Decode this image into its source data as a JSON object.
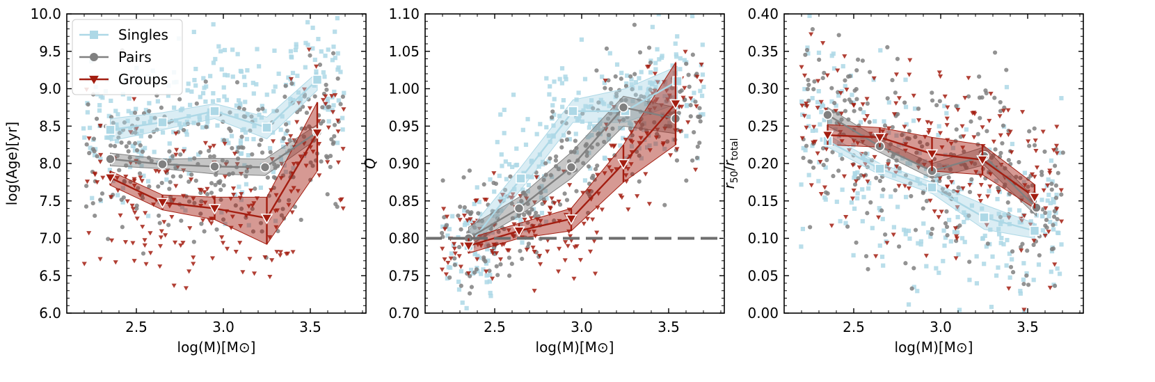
{
  "chart_data": [
    {
      "type": "line",
      "title": "",
      "xlabel": "log(M)[M⊙]",
      "ylabel": "log(Age)[yr]",
      "xlim": [
        2.1,
        3.82
      ],
      "ylim": [
        6.0,
        10.0
      ],
      "xticks": [
        2.5,
        3.0,
        3.5
      ],
      "xtick_labels": [
        "2.5",
        "3.0",
        "3.5"
      ],
      "yticks": [
        6.0,
        6.5,
        7.0,
        7.5,
        8.0,
        8.5,
        9.0,
        9.5,
        10.0
      ],
      "ytick_labels": [
        "6.0",
        "6.5",
        "7.0",
        "7.5",
        "8.0",
        "8.5",
        "9.0",
        "9.5",
        "10.0"
      ],
      "legend": {
        "position": "top-left",
        "entries": [
          "Singles",
          "Pairs",
          "Groups"
        ]
      },
      "series": [
        {
          "name": "Singles",
          "color": "#add8e6",
          "marker": "square",
          "x": [
            2.35,
            2.65,
            2.95,
            3.25,
            3.54
          ],
          "y": [
            8.45,
            8.55,
            8.7,
            8.48,
            9.12
          ],
          "lo": [
            8.3,
            8.45,
            8.6,
            8.33,
            8.98
          ],
          "hi": [
            8.6,
            8.68,
            8.8,
            8.62,
            9.22
          ]
        },
        {
          "name": "Pairs",
          "color": "#808080",
          "marker": "circle",
          "x": [
            2.35,
            2.65,
            2.95,
            3.24,
            3.54
          ],
          "y": [
            8.06,
            7.99,
            7.96,
            7.95,
            8.42
          ],
          "lo": [
            7.97,
            7.93,
            7.86,
            7.84,
            8.33
          ],
          "hi": [
            8.14,
            8.06,
            8.07,
            8.06,
            8.52
          ]
        },
        {
          "name": "Groups",
          "color": "#a31d10",
          "marker": "triangle-down",
          "x": [
            2.35,
            2.65,
            2.95,
            3.25,
            3.54
          ],
          "y": [
            7.81,
            7.48,
            7.4,
            7.27,
            8.41
          ],
          "lo": [
            7.71,
            7.38,
            7.25,
            6.92,
            7.9
          ],
          "hi": [
            7.9,
            7.58,
            7.55,
            7.55,
            8.82
          ]
        }
      ]
    },
    {
      "type": "line",
      "title": "",
      "xlabel": "log(M)[M⊙]",
      "ylabel": "Q",
      "xlim": [
        2.1,
        3.82
      ],
      "ylim": [
        0.7,
        1.1
      ],
      "xticks": [
        2.5,
        3.0,
        3.5
      ],
      "xtick_labels": [
        "2.5",
        "3.0",
        "3.5"
      ],
      "yticks": [
        0.7,
        0.75,
        0.8,
        0.85,
        0.9,
        0.95,
        1.0,
        1.05,
        1.1
      ],
      "ytick_labels": [
        "0.70",
        "0.75",
        "0.80",
        "0.85",
        "0.90",
        "0.95",
        "1.00",
        "1.05",
        "1.10"
      ],
      "hline": 0.8,
      "series": [
        {
          "name": "Singles",
          "color": "#add8e6",
          "marker": "square",
          "x": [
            2.35,
            2.65,
            2.95,
            3.25,
            3.55
          ],
          "y": [
            0.79,
            0.88,
            0.97,
            0.97,
            1.01
          ],
          "lo": [
            0.78,
            0.865,
            0.955,
            0.955,
            0.98
          ],
          "hi": [
            0.81,
            0.895,
            0.985,
            1.0,
            1.03
          ]
        },
        {
          "name": "Pairs",
          "color": "#808080",
          "marker": "circle",
          "x": [
            2.35,
            2.64,
            2.94,
            3.24,
            3.54
          ],
          "y": [
            0.8,
            0.84,
            0.895,
            0.975,
            0.96
          ],
          "lo": [
            0.79,
            0.83,
            0.88,
            0.95,
            0.94
          ],
          "hi": [
            0.815,
            0.855,
            0.915,
            0.99,
            0.975
          ]
        },
        {
          "name": "Groups",
          "color": "#a31d10",
          "marker": "triangle-down",
          "x": [
            2.35,
            2.64,
            2.94,
            3.24,
            3.54
          ],
          "y": [
            0.79,
            0.81,
            0.826,
            0.9,
            0.98
          ],
          "lo": [
            0.78,
            0.8,
            0.81,
            0.875,
            0.925
          ],
          "hi": [
            0.8,
            0.82,
            0.84,
            0.925,
            1.035
          ]
        }
      ]
    },
    {
      "type": "line",
      "title": "",
      "xlabel": "log(M)[M⊙]",
      "ylabel": "r50/rtotal",
      "xlim": [
        2.1,
        3.82
      ],
      "ylim": [
        0.0,
        0.4
      ],
      "xticks": [
        2.5,
        3.0,
        3.5
      ],
      "xtick_labels": [
        "2.5",
        "3.0",
        "3.5"
      ],
      "yticks": [
        0.0,
        0.05,
        0.1,
        0.15,
        0.2,
        0.25,
        0.3,
        0.35,
        0.4
      ],
      "ytick_labels": [
        "0.00",
        "0.05",
        "0.10",
        "0.15",
        "0.20",
        "0.25",
        "0.30",
        "0.35",
        "0.40"
      ],
      "series": [
        {
          "name": "Singles",
          "color": "#add8e6",
          "marker": "square",
          "x": [
            2.35,
            2.65,
            2.95,
            3.25,
            3.54
          ],
          "y": [
            0.23,
            0.193,
            0.168,
            0.128,
            0.11
          ],
          "lo": [
            0.222,
            0.185,
            0.16,
            0.112,
            0.1
          ],
          "hi": [
            0.238,
            0.2,
            0.175,
            0.145,
            0.12
          ]
        },
        {
          "name": "Pairs",
          "color": "#808080",
          "marker": "circle",
          "x": [
            2.35,
            2.65,
            2.95,
            3.25,
            3.55
          ],
          "y": [
            0.265,
            0.223,
            0.19,
            0.21,
            0.141
          ],
          "lo": [
            0.25,
            0.215,
            0.18,
            0.198,
            0.13
          ],
          "hi": [
            0.275,
            0.232,
            0.2,
            0.222,
            0.152
          ]
        },
        {
          "name": "Groups",
          "color": "#a31d10",
          "marker": "triangle-down",
          "x": [
            2.35,
            2.65,
            2.95,
            3.24,
            3.54
          ],
          "y": [
            0.238,
            0.235,
            0.213,
            0.205,
            0.155
          ],
          "lo": [
            0.225,
            0.222,
            0.19,
            0.185,
            0.14
          ],
          "hi": [
            0.252,
            0.248,
            0.235,
            0.225,
            0.172
          ]
        }
      ]
    }
  ]
}
